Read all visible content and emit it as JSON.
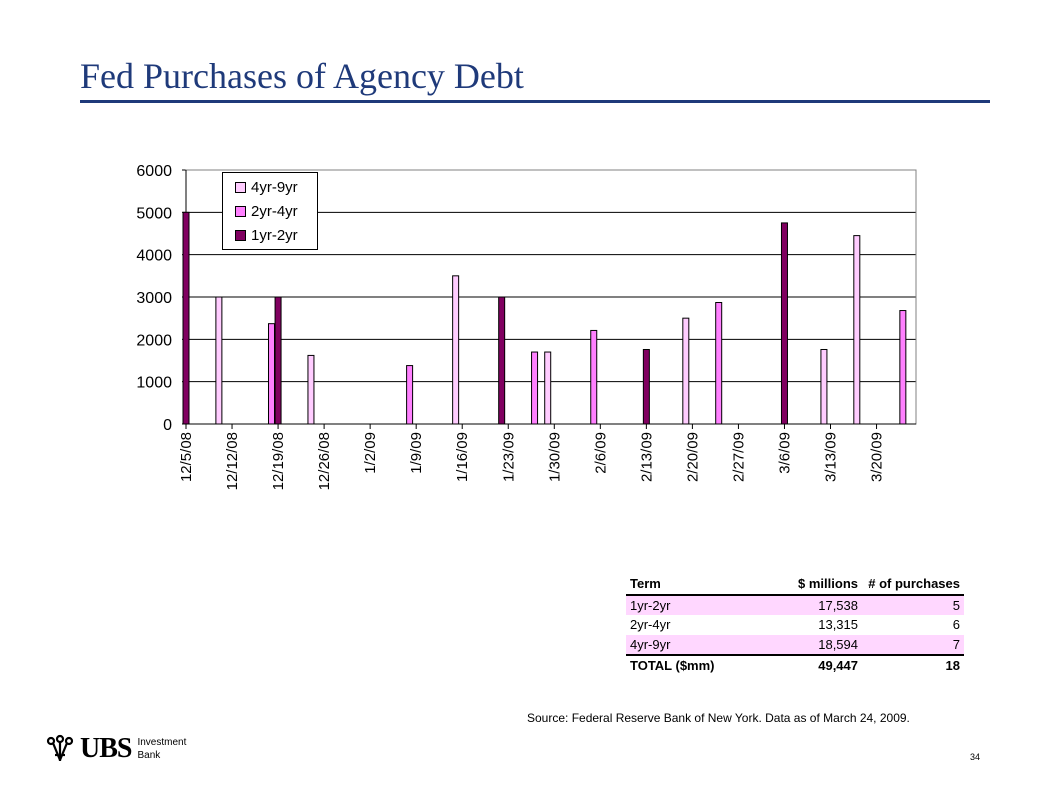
{
  "slide": {
    "title": "Fed Purchases of Agency Debt",
    "source": "Source: Federal Reserve Bank of New York.  Data as of March 24, 2009.",
    "page_number": "34"
  },
  "logo": {
    "brand": "UBS",
    "line1": "Investment",
    "line2": "Bank"
  },
  "colors": {
    "title": "#1f3a7a",
    "series_4yr_9yr": "#ffccff",
    "series_2yr_4yr": "#ff80ff",
    "series_1yr_2yr": "#800060",
    "table_highlight": "#ffd7ff"
  },
  "chart_data": {
    "type": "bar",
    "title": "",
    "xlabel": "",
    "ylabel": "",
    "ylim": [
      0,
      6000
    ],
    "yticks": [
      0,
      1000,
      2000,
      3000,
      4000,
      5000,
      6000
    ],
    "grid": true,
    "legend_position": "top-left",
    "x_ticks": [
      "12/5/08",
      "12/12/08",
      "12/19/08",
      "12/26/08",
      "1/2/09",
      "1/9/09",
      "1/16/09",
      "1/23/09",
      "1/30/09",
      "2/6/09",
      "2/13/09",
      "2/20/09",
      "2/27/09",
      "3/6/09",
      "3/13/09",
      "3/20/09"
    ],
    "series": [
      {
        "name": "4yr-9yr",
        "color": "#ffccff",
        "points": [
          {
            "x": "12/10/08",
            "y": 3000
          },
          {
            "x": "12/24/08",
            "y": 1620
          },
          {
            "x": "1/15/09",
            "y": 3500
          },
          {
            "x": "1/29/09",
            "y": 1700
          },
          {
            "x": "2/19/09",
            "y": 2500
          },
          {
            "x": "3/12/09",
            "y": 1760
          },
          {
            "x": "3/17/09",
            "y": 4450
          }
        ]
      },
      {
        "name": "2yr-4yr",
        "color": "#ff80ff",
        "points": [
          {
            "x": "12/18/08",
            "y": 2370
          },
          {
            "x": "1/8/09",
            "y": 1380
          },
          {
            "x": "1/27/09",
            "y": 1700
          },
          {
            "x": "2/5/09",
            "y": 2210
          },
          {
            "x": "2/24/09",
            "y": 2870
          },
          {
            "x": "3/24/09",
            "y": 2680
          }
        ]
      },
      {
        "name": "1yr-2yr",
        "color": "#800060",
        "points": [
          {
            "x": "12/5/08",
            "y": 5000
          },
          {
            "x": "12/19/08",
            "y": 3000
          },
          {
            "x": "1/22/09",
            "y": 3000
          },
          {
            "x": "2/13/09",
            "y": 1760
          },
          {
            "x": "3/6/09",
            "y": 4750
          }
        ]
      }
    ]
  },
  "table": {
    "headers": [
      "Term",
      "$ millions",
      "# of purchases"
    ],
    "rows": [
      {
        "term": "1yr-2yr",
        "millions": "17,538",
        "purchases": "5",
        "highlight": true
      },
      {
        "term": "2yr-4yr",
        "millions": "13,315",
        "purchases": "6",
        "highlight": false
      },
      {
        "term": "4yr-9yr",
        "millions": "18,594",
        "purchases": "7",
        "highlight": true
      }
    ],
    "total": {
      "term": "TOTAL ($mm)",
      "millions": "49,447",
      "purchases": "18"
    }
  }
}
